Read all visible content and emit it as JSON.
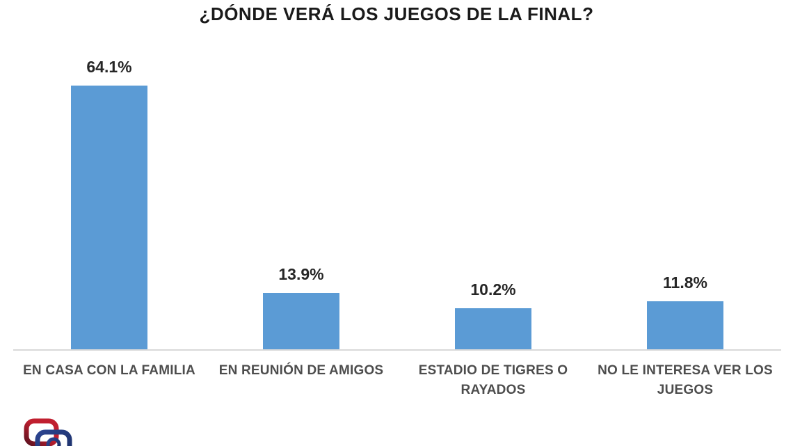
{
  "chart_data": {
    "type": "bar",
    "title": "¿DÓNDE VERÁ LOS JUEGOS DE LA FINAL?",
    "categories": [
      "EN CASA CON LA FAMILIA",
      "EN REUNIÓN DE AMIGOS",
      "ESTADIO DE TIGRES O RAYADOS",
      "NO LE INTERESA VER LOS JUEGOS"
    ],
    "category_lines": [
      [
        "EN CASA CON LA FAMILIA"
      ],
      [
        "EN REUNIÓN DE AMIGOS"
      ],
      [
        "ESTADIO DE TIGRES O",
        "RAYADOS"
      ],
      [
        "NO LE INTERESA VER LOS",
        "JUEGOS"
      ]
    ],
    "values": [
      64.1,
      13.9,
      10.2,
      11.8
    ],
    "value_labels": [
      "64.1%",
      "13.9%",
      "10.2%",
      "11.8%"
    ],
    "xlabel": "",
    "ylabel": "",
    "ylim": [
      0,
      70
    ],
    "grid": false,
    "legend": false,
    "value_labels_position": "above-bars",
    "colors": {
      "bar": "#5B9BD5",
      "title": "#1A1A1A",
      "value_label": "#262626",
      "category_label": "#4D4D4D",
      "axis_line": "#D9D9D9",
      "background": "#FFFFFF"
    }
  },
  "logo": {
    "name": "interlocked-rings-logo",
    "colors": {
      "red": "#C01F2F",
      "dark_red": "#5E1220",
      "blue": "#2B4490",
      "dark_blue": "#1B2F66"
    }
  }
}
